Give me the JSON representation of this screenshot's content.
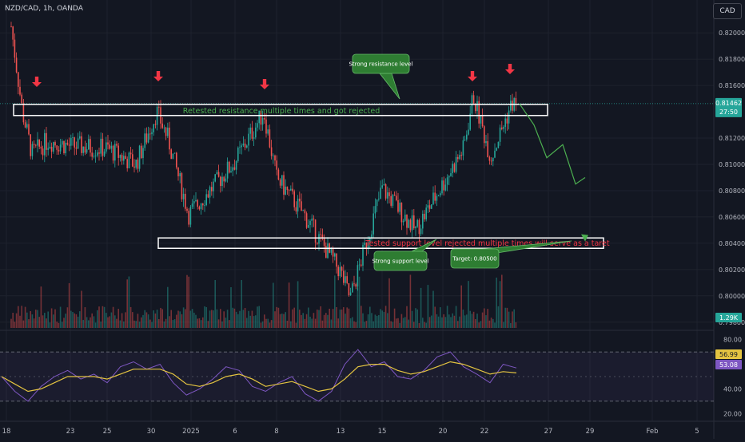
{
  "header": {
    "symbol": "NZD/CAD, 1h, OANDA",
    "currency_button": "CAD"
  },
  "colors": {
    "bg": "#131722",
    "up": "#26a69a",
    "down": "#ef5350",
    "rsi": "#7e57c2",
    "rsi_ma": "#e4c441",
    "arrow": "#f23645",
    "box": "#ffffff",
    "path": "#4caf50",
    "label_bg": "#2e7d32"
  },
  "price_axis": [
    "0.82000",
    "0.81800",
    "0.81600",
    "0.81200",
    "0.81000",
    "0.80800",
    "0.80600",
    "0.80400",
    "0.80200",
    "0.80000",
    "0.79800"
  ],
  "rsi_axis": [
    "80.00",
    "40.00",
    "20.00"
  ],
  "time_axis": [
    "18",
    "23",
    "25",
    "30",
    "2025",
    "6",
    "8",
    "13",
    "15",
    "20",
    "22",
    "27",
    "29",
    "Feb",
    "5"
  ],
  "badges": {
    "price": "0.81462",
    "countdown": "27:50",
    "volume": "1.29K",
    "rsi_value": "56.99",
    "rsi_ma_value": "53.08"
  },
  "annotations": {
    "resistance_text": "Retested resistance multiple times and got rejected",
    "support_text": "Tested support level rejected multiple times will serve as a taret",
    "callout_resistance": "Strong resistance level",
    "callout_support": "Strong support level",
    "callout_target": "Target: 0.80500"
  },
  "chart_data": [
    {
      "type": "candlestick",
      "title": "NZD/CAD, 1h, OANDA",
      "x_ticks": [
        "18",
        "23",
        "25",
        "30",
        "2025",
        "6",
        "8",
        "13",
        "15",
        "20",
        "22",
        "27",
        "29",
        "Feb",
        "5"
      ],
      "y_ticks": [
        0.82,
        0.818,
        0.816,
        0.812,
        0.81,
        0.808,
        0.806,
        0.804,
        0.802,
        0.8,
        0.798
      ],
      "ylim": [
        0.7975,
        0.8225
      ],
      "price_path": [
        {
          "x": "18",
          "y": 0.8205
        },
        {
          "x": "19",
          "y": 0.814
        },
        {
          "x": "20",
          "y": 0.8108
        },
        {
          "x": "21",
          "y": 0.8118
        },
        {
          "x": "23",
          "y": 0.8114
        },
        {
          "x": "25",
          "y": 0.8112
        },
        {
          "x": "27",
          "y": 0.81
        },
        {
          "x": "30",
          "y": 0.814
        },
        {
          "x": "31",
          "y": 0.812
        },
        {
          "x": "2",
          "y": 0.8062
        },
        {
          "x": "6",
          "y": 0.8102
        },
        {
          "x": "7",
          "y": 0.814
        },
        {
          "x": "8",
          "y": 0.809
        },
        {
          "x": "10",
          "y": 0.8062
        },
        {
          "x": "12",
          "y": 0.8018
        },
        {
          "x": "13",
          "y": 0.7998
        },
        {
          "x": "15",
          "y": 0.8082
        },
        {
          "x": "17",
          "y": 0.805
        },
        {
          "x": "20",
          "y": 0.8112
        },
        {
          "x": "21",
          "y": 0.8152
        },
        {
          "x": "22",
          "y": 0.8105
        },
        {
          "x": "23",
          "y": 0.8146
        }
      ],
      "levels": {
        "resistance": 0.8142,
        "support": 0.8041
      },
      "projection": [
        0.8146,
        0.813,
        0.8105,
        0.8115,
        0.8085,
        0.809,
        0.8045
      ],
      "target": 0.805,
      "last_price": 0.81462,
      "grid": true
    },
    {
      "type": "line",
      "title": "RSI",
      "ylim": [
        15,
        85
      ],
      "y_ticks": [
        80,
        40,
        20
      ],
      "bands": [
        70,
        30
      ],
      "series": [
        {
          "values": [
            50,
            38,
            30,
            42,
            50,
            55,
            48,
            52,
            45,
            58,
            62,
            56,
            60,
            45,
            35,
            40,
            48,
            58,
            55,
            42,
            38,
            45,
            50,
            36,
            30,
            38,
            60,
            72,
            58,
            62,
            50,
            48,
            55,
            66,
            70,
            58,
            52,
            45,
            60,
            57
          ]
        },
        {
          "values": [
            50,
            44,
            38,
            40,
            45,
            50,
            50,
            50,
            48,
            52,
            56,
            56,
            56,
            52,
            44,
            42,
            45,
            50,
            52,
            48,
            42,
            44,
            46,
            42,
            38,
            40,
            48,
            58,
            60,
            60,
            55,
            52,
            54,
            58,
            62,
            60,
            56,
            52,
            54,
            53
          ]
        }
      ],
      "last": [
        56.99,
        53.08
      ]
    }
  ]
}
